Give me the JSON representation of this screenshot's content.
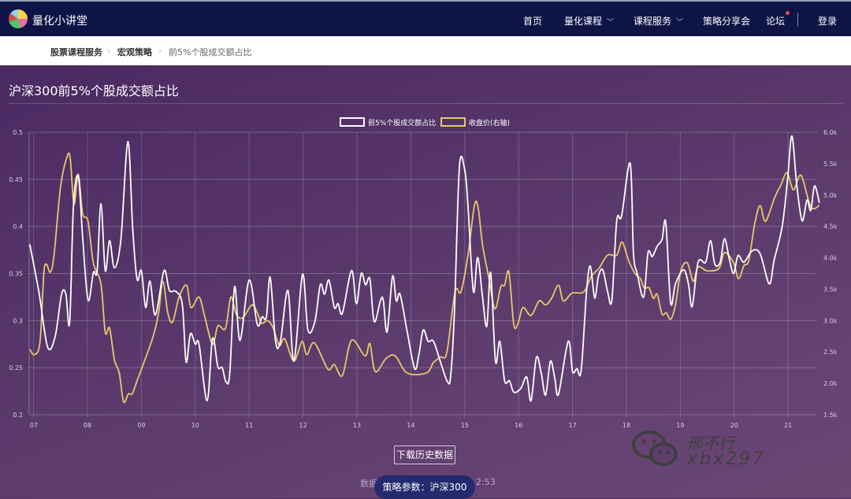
{
  "nav": {
    "brand": "量化小讲堂",
    "items": [
      {
        "label": "首页"
      },
      {
        "label": "量化课程"
      },
      {
        "label": "课程服务"
      },
      {
        "label": "策略分享会"
      },
      {
        "label": "论坛"
      }
    ],
    "login": "登录"
  },
  "breadcrumb": [
    "股票课程服务",
    "宏观策略",
    "前5%个股成交额占比"
  ],
  "page_title": "沪深300前5%个股成交额占比",
  "download_label": "下载历史数据",
  "footer": {
    "left_fragment": "数据",
    "right_fragment": "2:53"
  },
  "params_pill": "策略参数：沪深300",
  "watermark": {
    "name": "邢不行",
    "id": "xbx297"
  },
  "colors": {
    "ratio": "#ffffff",
    "price": "#e8c86a",
    "nav": "#0f1447",
    "pill": "#232a6e"
  },
  "chart_data": {
    "type": "line",
    "legend": [
      "前5%个股成交额占比",
      "收盘价(右轴)"
    ],
    "legend_position": "top",
    "x_ticks": [
      "07",
      "08",
      "09",
      "10",
      "11",
      "12",
      "13",
      "14",
      "15",
      "16",
      "17",
      "18",
      "19",
      "20",
      "21"
    ],
    "y_left": {
      "ticks": [
        "0.2",
        "0.25",
        "0.3",
        "0.35",
        "0.4",
        "0.45",
        "0.5"
      ],
      "range": [
        0.2,
        0.5
      ]
    },
    "y_right": {
      "ticks": [
        "1.5k",
        "2.0k",
        "2.5k",
        "3.0k",
        "3.5k",
        "4.0k",
        "4.5k",
        "5.0k",
        "5.5k",
        "6.0k"
      ],
      "range": [
        1500,
        6000
      ]
    },
    "x_range": [
      2006.92,
      2021.58
    ],
    "series": [
      {
        "name": "前5%个股成交额占比",
        "axis": "left",
        "points": [
          [
            2006.93,
            0.381
          ],
          [
            2007.1,
            0.33
          ],
          [
            2007.26,
            0.272
          ],
          [
            2007.4,
            0.283
          ],
          [
            2007.52,
            0.328
          ],
          [
            2007.6,
            0.328
          ],
          [
            2007.67,
            0.298
          ],
          [
            2007.74,
            0.422
          ],
          [
            2007.83,
            0.453
          ],
          [
            2007.91,
            0.389
          ],
          [
            2008.01,
            0.322
          ],
          [
            2008.11,
            0.351
          ],
          [
            2008.18,
            0.353
          ],
          [
            2008.25,
            0.424
          ],
          [
            2008.33,
            0.353
          ],
          [
            2008.41,
            0.385
          ],
          [
            2008.5,
            0.356
          ],
          [
            2008.62,
            0.386
          ],
          [
            2008.75,
            0.49
          ],
          [
            2008.84,
            0.397
          ],
          [
            2008.92,
            0.344
          ],
          [
            2009.0,
            0.353
          ],
          [
            2009.08,
            0.314
          ],
          [
            2009.16,
            0.342
          ],
          [
            2009.26,
            0.306
          ],
          [
            2009.42,
            0.353
          ],
          [
            2009.52,
            0.332
          ],
          [
            2009.64,
            0.331
          ],
          [
            2009.76,
            0.317
          ],
          [
            2009.83,
            0.256
          ],
          [
            2009.91,
            0.286
          ],
          [
            2010.0,
            0.275
          ],
          [
            2010.07,
            0.275
          ],
          [
            2010.22,
            0.215
          ],
          [
            2010.32,
            0.281
          ],
          [
            2010.42,
            0.251
          ],
          [
            2010.5,
            0.25
          ],
          [
            2010.57,
            0.235
          ],
          [
            2010.64,
            0.244
          ],
          [
            2010.73,
            0.336
          ],
          [
            2010.83,
            0.279
          ],
          [
            2011.0,
            0.343
          ],
          [
            2011.15,
            0.296
          ],
          [
            2011.24,
            0.304
          ],
          [
            2011.32,
            0.304
          ],
          [
            2011.39,
            0.346
          ],
          [
            2011.49,
            0.278
          ],
          [
            2011.58,
            0.278
          ],
          [
            2011.72,
            0.332
          ],
          [
            2011.83,
            0.257
          ],
          [
            2011.99,
            0.349
          ],
          [
            2012.09,
            0.29
          ],
          [
            2012.22,
            0.299
          ],
          [
            2012.32,
            0.338
          ],
          [
            2012.4,
            0.328
          ],
          [
            2012.48,
            0.343
          ],
          [
            2012.58,
            0.314
          ],
          [
            2012.65,
            0.318
          ],
          [
            2012.73,
            0.308
          ],
          [
            2012.9,
            0.353
          ],
          [
            2012.99,
            0.318
          ],
          [
            2013.08,
            0.35
          ],
          [
            2013.16,
            0.338
          ],
          [
            2013.24,
            0.344
          ],
          [
            2013.32,
            0.299
          ],
          [
            2013.44,
            0.322
          ],
          [
            2013.49,
            0.321
          ],
          [
            2013.56,
            0.288
          ],
          [
            2013.66,
            0.347
          ],
          [
            2013.73,
            0.321
          ],
          [
            2013.8,
            0.328
          ],
          [
            2013.93,
            0.289
          ],
          [
            2014.07,
            0.249
          ],
          [
            2014.15,
            0.264
          ],
          [
            2014.23,
            0.29
          ],
          [
            2014.32,
            0.278
          ],
          [
            2014.42,
            0.278
          ],
          [
            2014.55,
            0.256
          ],
          [
            2014.68,
            0.235
          ],
          [
            2014.74,
            0.242
          ],
          [
            2014.81,
            0.311
          ],
          [
            2014.9,
            0.4625
          ],
          [
            2015.0,
            0.46
          ],
          [
            2015.06,
            0.422
          ],
          [
            2015.16,
            0.331
          ],
          [
            2015.24,
            0.367
          ],
          [
            2015.33,
            0.325
          ],
          [
            2015.41,
            0.294
          ],
          [
            2015.48,
            0.351
          ],
          [
            2015.57,
            0.257
          ],
          [
            2015.65,
            0.278
          ],
          [
            2015.74,
            0.236
          ],
          [
            2015.83,
            0.236
          ],
          [
            2015.91,
            0.224
          ],
          [
            2016.04,
            0.228
          ],
          [
            2016.15,
            0.24
          ],
          [
            2016.23,
            0.215
          ],
          [
            2016.33,
            0.261
          ],
          [
            2016.42,
            0.244
          ],
          [
            2016.5,
            0.221
          ],
          [
            2016.59,
            0.257
          ],
          [
            2016.67,
            0.239
          ],
          [
            2016.74,
            0.222
          ],
          [
            2016.92,
            0.278
          ],
          [
            2017.0,
            0.246
          ],
          [
            2017.08,
            0.249
          ],
          [
            2017.16,
            0.247
          ],
          [
            2017.26,
            0.331
          ],
          [
            2017.33,
            0.358
          ],
          [
            2017.41,
            0.324
          ],
          [
            2017.48,
            0.347
          ],
          [
            2017.56,
            0.354
          ],
          [
            2017.65,
            0.331
          ],
          [
            2017.73,
            0.322
          ],
          [
            2017.82,
            0.406
          ],
          [
            2017.91,
            0.411
          ],
          [
            2018.07,
            0.467
          ],
          [
            2018.13,
            0.372
          ],
          [
            2018.2,
            0.35
          ],
          [
            2018.32,
            0.325
          ],
          [
            2018.4,
            0.372
          ],
          [
            2018.48,
            0.368
          ],
          [
            2018.57,
            0.379
          ],
          [
            2018.66,
            0.386
          ],
          [
            2018.73,
            0.404
          ],
          [
            2018.82,
            0.319
          ],
          [
            2018.91,
            0.339
          ],
          [
            2019.06,
            0.354
          ],
          [
            2019.15,
            0.339
          ],
          [
            2019.22,
            0.315
          ],
          [
            2019.33,
            0.362
          ],
          [
            2019.47,
            0.362
          ],
          [
            2019.56,
            0.385
          ],
          [
            2019.64,
            0.36
          ],
          [
            2019.74,
            0.362
          ],
          [
            2019.82,
            0.387
          ],
          [
            2019.91,
            0.365
          ],
          [
            2019.99,
            0.35
          ],
          [
            2020.07,
            0.369
          ],
          [
            2020.18,
            0.362
          ],
          [
            2020.33,
            0.374
          ],
          [
            2020.48,
            0.371
          ],
          [
            2020.65,
            0.339
          ],
          [
            2020.74,
            0.364
          ],
          [
            2020.89,
            0.4
          ],
          [
            2020.99,
            0.45
          ],
          [
            2021.07,
            0.496
          ],
          [
            2021.16,
            0.444
          ],
          [
            2021.26,
            0.406
          ],
          [
            2021.35,
            0.428
          ],
          [
            2021.42,
            0.417
          ],
          [
            2021.49,
            0.443
          ],
          [
            2021.58,
            0.425
          ]
        ]
      },
      {
        "name": "收盘价(右轴)",
        "axis": "right",
        "points": [
          [
            2006.93,
            2542
          ],
          [
            2007.02,
            2458
          ],
          [
            2007.12,
            2667
          ],
          [
            2007.19,
            3750
          ],
          [
            2007.24,
            3896
          ],
          [
            2007.31,
            3771
          ],
          [
            2007.38,
            4042
          ],
          [
            2007.5,
            5125
          ],
          [
            2007.62,
            5604
          ],
          [
            2007.68,
            5583
          ],
          [
            2007.75,
            4854
          ],
          [
            2007.83,
            5333
          ],
          [
            2007.91,
            4708
          ],
          [
            2008.01,
            4583
          ],
          [
            2008.11,
            3917
          ],
          [
            2008.25,
            3583
          ],
          [
            2008.33,
            2813
          ],
          [
            2008.41,
            2880
          ],
          [
            2008.5,
            2375
          ],
          [
            2008.59,
            2167
          ],
          [
            2008.67,
            1708
          ],
          [
            2008.76,
            1833
          ],
          [
            2008.83,
            1833
          ],
          [
            2008.92,
            2042
          ],
          [
            2009.03,
            2292
          ],
          [
            2009.22,
            2750
          ],
          [
            2009.32,
            3125
          ],
          [
            2009.4,
            3625
          ],
          [
            2009.49,
            3125
          ],
          [
            2009.58,
            2979
          ],
          [
            2009.7,
            3375
          ],
          [
            2009.84,
            3563
          ],
          [
            2009.92,
            3208
          ],
          [
            2010.07,
            3375
          ],
          [
            2010.17,
            3083
          ],
          [
            2010.32,
            2625
          ],
          [
            2010.42,
            2917
          ],
          [
            2010.56,
            2875
          ],
          [
            2010.66,
            3375
          ],
          [
            2010.76,
            3104
          ],
          [
            2010.88,
            3042
          ],
          [
            2011.05,
            3250
          ],
          [
            2011.15,
            3125
          ],
          [
            2011.23,
            2958
          ],
          [
            2011.34,
            3000
          ],
          [
            2011.44,
            2896
          ],
          [
            2011.56,
            2604
          ],
          [
            2011.66,
            2708
          ],
          [
            2011.83,
            2354
          ],
          [
            2011.98,
            2667
          ],
          [
            2012.07,
            2458
          ],
          [
            2012.21,
            2646
          ],
          [
            2012.46,
            2229
          ],
          [
            2012.58,
            2300
          ],
          [
            2012.73,
            2125
          ],
          [
            2012.9,
            2688
          ],
          [
            2013.15,
            2438
          ],
          [
            2013.24,
            2633
          ],
          [
            2013.34,
            2188
          ],
          [
            2013.54,
            2396
          ],
          [
            2013.71,
            2438
          ],
          [
            2013.93,
            2167
          ],
          [
            2014.29,
            2167
          ],
          [
            2014.42,
            2333
          ],
          [
            2014.55,
            2417
          ],
          [
            2014.67,
            2500
          ],
          [
            2014.82,
            3458
          ],
          [
            2014.93,
            3458
          ],
          [
            2015.06,
            4042
          ],
          [
            2015.18,
            4833
          ],
          [
            2015.25,
            4792
          ],
          [
            2015.33,
            4208
          ],
          [
            2015.45,
            3667
          ],
          [
            2015.56,
            3188
          ],
          [
            2015.67,
            3542
          ],
          [
            2015.74,
            3563
          ],
          [
            2015.82,
            3771
          ],
          [
            2015.91,
            2938
          ],
          [
            2015.99,
            2958
          ],
          [
            2016.08,
            3208
          ],
          [
            2016.23,
            3083
          ],
          [
            2016.38,
            3313
          ],
          [
            2016.5,
            3250
          ],
          [
            2016.61,
            3354
          ],
          [
            2016.74,
            3563
          ],
          [
            2016.83,
            3313
          ],
          [
            2016.99,
            3438
          ],
          [
            2017.21,
            3458
          ],
          [
            2017.35,
            3708
          ],
          [
            2017.49,
            3833
          ],
          [
            2017.65,
            4042
          ],
          [
            2017.82,
            4042
          ],
          [
            2017.92,
            4250
          ],
          [
            2018.04,
            3958
          ],
          [
            2018.16,
            3750
          ],
          [
            2018.26,
            3667
          ],
          [
            2018.33,
            3521
          ],
          [
            2018.42,
            3521
          ],
          [
            2018.5,
            3354
          ],
          [
            2018.57,
            3420
          ],
          [
            2018.66,
            3104
          ],
          [
            2018.74,
            3125
          ],
          [
            2018.82,
            3021
          ],
          [
            2018.91,
            3250
          ],
          [
            2019.01,
            3792
          ],
          [
            2019.13,
            3917
          ],
          [
            2019.24,
            3625
          ],
          [
            2019.33,
            3854
          ],
          [
            2019.5,
            3792
          ],
          [
            2019.72,
            3833
          ],
          [
            2019.82,
            4083
          ],
          [
            2019.99,
            3917
          ],
          [
            2020.08,
            3667
          ],
          [
            2020.18,
            3875
          ],
          [
            2020.27,
            3958
          ],
          [
            2020.38,
            4542
          ],
          [
            2020.48,
            4833
          ],
          [
            2020.58,
            4583
          ],
          [
            2020.75,
            4958
          ],
          [
            2020.87,
            5167
          ],
          [
            2020.98,
            5354
          ],
          [
            2021.1,
            5083
          ],
          [
            2021.24,
            5313
          ],
          [
            2021.42,
            4813
          ],
          [
            2021.58,
            4833
          ]
        ]
      }
    ]
  }
}
